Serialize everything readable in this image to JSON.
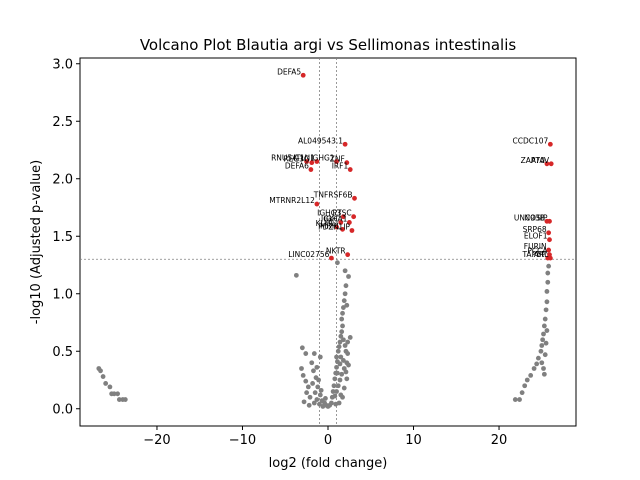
{
  "chart_data": {
    "type": "scatter",
    "title": "Volcano Plot Blautia argi vs Sellimonas intestinalis",
    "xlabel": "log2 (fold change)",
    "ylabel": "-log10 (Adjusted p-value)",
    "xlim": [
      -29,
      29
    ],
    "ylim": [
      -0.15,
      3.05
    ],
    "xticks": [
      -20,
      -10,
      0,
      10,
      20
    ],
    "yticks": [
      0.0,
      0.5,
      1.0,
      1.5,
      2.0,
      2.5,
      3.0
    ],
    "xtick_labels": [
      "−20",
      "−10",
      "0",
      "10",
      "20"
    ],
    "ytick_labels": [
      "0.0",
      "0.5",
      "1.0",
      "1.5",
      "2.0",
      "2.5",
      "3.0"
    ],
    "thresholds": {
      "log2fc": [
        -1,
        1
      ],
      "neg_log10_p": 1.3
    },
    "grid": false,
    "colors": {
      "significant": "#d62728",
      "not_significant": "#808080",
      "threshold_line": "#808080"
    },
    "significant_points": [
      {
        "label": "DEFA5",
        "x": -2.9,
        "y": 2.9
      },
      {
        "label": "AL049543.1",
        "x": 2.0,
        "y": 2.3
      },
      {
        "label": "CCDC107",
        "x": 26.0,
        "y": 2.3
      },
      {
        "label": "RNU5A-1",
        "x": -2.5,
        "y": 2.15
      },
      {
        "label": "REG3G",
        "x": -1.9,
        "y": 2.14
      },
      {
        "label": "ITLN1",
        "x": -1.3,
        "y": 2.15
      },
      {
        "label": "IGHG1",
        "x": 1.0,
        "y": 2.15
      },
      {
        "label": "ZNF",
        "x": 2.2,
        "y": 2.14
      },
      {
        "label": "DEFA6",
        "x": -2.0,
        "y": 2.08
      },
      {
        "label": "IRF1",
        "x": 2.6,
        "y": 2.08
      },
      {
        "label": "ZAP70",
        "x": 25.6,
        "y": 2.13
      },
      {
        "label": "ATAV",
        "x": 26.1,
        "y": 2.13
      },
      {
        "label": "TNFRSF6B",
        "x": 3.1,
        "y": 1.83
      },
      {
        "label": "MTRNR2L12",
        "x": -1.3,
        "y": 1.78
      },
      {
        "label": "IGHG3",
        "x": 1.8,
        "y": 1.67
      },
      {
        "label": "PTSC",
        "x": 3.0,
        "y": 1.67
      },
      {
        "label": "IGKC",
        "x": 1.5,
        "y": 1.62
      },
      {
        "label": "IGHA1",
        "x": 2.5,
        "y": 1.62
      },
      {
        "label": "UNC93B",
        "x": 25.6,
        "y": 1.63
      },
      {
        "label": "NOSIP",
        "x": 25.9,
        "y": 1.63
      },
      {
        "label": "KLHL",
        "x": 1.0,
        "y": 1.58
      },
      {
        "label": "MRPL",
        "x": 1.7,
        "y": 1.56
      },
      {
        "label": "PDZK1IP",
        "x": 2.8,
        "y": 1.55
      },
      {
        "label": "SRP68",
        "x": 25.8,
        "y": 1.53
      },
      {
        "label": "ELOF1",
        "x": 25.9,
        "y": 1.47
      },
      {
        "label": "FURIN",
        "x": 25.8,
        "y": 1.38
      },
      {
        "label": "NKTR",
        "x": 2.3,
        "y": 1.34
      },
      {
        "label": "LINC02756",
        "x": 0.4,
        "y": 1.31
      },
      {
        "label": "PCCA",
        "x": 25.9,
        "y": 1.34
      },
      {
        "label": "TAPBP",
        "x": 25.7,
        "y": 1.31
      },
      {
        "label": "ARL",
        "x": 26.0,
        "y": 1.31
      }
    ],
    "nonsignificant_points": [
      [
        -26.8,
        0.35
      ],
      [
        -26.6,
        0.33
      ],
      [
        -26.3,
        0.28
      ],
      [
        -26.0,
        0.22
      ],
      [
        -25.5,
        0.19
      ],
      [
        -25.3,
        0.13
      ],
      [
        -25.0,
        0.13
      ],
      [
        -24.6,
        0.13
      ],
      [
        -24.4,
        0.08
      ],
      [
        -24.0,
        0.08
      ],
      [
        -23.7,
        0.08
      ],
      [
        -3.7,
        1.16
      ],
      [
        -3.0,
        0.53
      ],
      [
        -2.6,
        0.48
      ],
      [
        -3.1,
        0.35
      ],
      [
        -2.9,
        0.29
      ],
      [
        -2.6,
        0.24
      ],
      [
        -2.3,
        0.19
      ],
      [
        -2.5,
        0.14
      ],
      [
        -2.1,
        0.1
      ],
      [
        -2.8,
        0.06
      ],
      [
        -1.9,
        0.4
      ],
      [
        -1.7,
        0.33
      ],
      [
        -1.4,
        0.27
      ],
      [
        -1.8,
        0.22
      ],
      [
        -1.2,
        0.19
      ],
      [
        -1.5,
        0.14
      ],
      [
        -0.9,
        0.12
      ],
      [
        -1.3,
        0.08
      ],
      [
        -0.7,
        0.07
      ],
      [
        -0.4,
        0.05
      ],
      [
        -0.2,
        0.03
      ],
      [
        0.0,
        0.02
      ],
      [
        0.2,
        0.03
      ],
      [
        -0.6,
        0.02
      ],
      [
        0.4,
        0.05
      ],
      [
        -1.0,
        0.04
      ],
      [
        -0.3,
        0.09
      ],
      [
        -1.6,
        0.05
      ],
      [
        -2.2,
        0.03
      ],
      [
        -0.8,
        0.16
      ],
      [
        -1.1,
        0.25
      ],
      [
        -1.3,
        0.36
      ],
      [
        -0.9,
        0.45
      ],
      [
        -1.6,
        0.48
      ],
      [
        0.5,
        0.1
      ],
      [
        0.6,
        0.15
      ],
      [
        0.7,
        0.2
      ],
      [
        0.8,
        0.26
      ],
      [
        0.9,
        0.31
      ],
      [
        1.0,
        0.36
      ],
      [
        1.1,
        0.41
      ],
      [
        1.0,
        0.45
      ],
      [
        1.2,
        0.5
      ],
      [
        1.3,
        0.54
      ],
      [
        1.4,
        0.58
      ],
      [
        1.5,
        0.63
      ],
      [
        1.6,
        0.67
      ],
      [
        1.7,
        0.72
      ],
      [
        1.6,
        0.78
      ],
      [
        1.7,
        0.83
      ],
      [
        1.8,
        0.88
      ],
      [
        1.9,
        0.94
      ],
      [
        2.0,
        1.0
      ],
      [
        2.1,
        1.07
      ],
      [
        2.4,
        1.15
      ],
      [
        1.1,
        1.27
      ],
      [
        2.0,
        1.2
      ],
      [
        2.2,
        0.9
      ],
      [
        1.8,
        0.6
      ],
      [
        2.0,
        0.55
      ],
      [
        2.3,
        0.48
      ],
      [
        2.2,
        0.4
      ],
      [
        1.9,
        0.35
      ],
      [
        1.6,
        0.3
      ],
      [
        1.4,
        0.25
      ],
      [
        1.2,
        0.2
      ],
      [
        1.0,
        0.15
      ],
      [
        0.8,
        0.11
      ],
      [
        1.5,
        0.12
      ],
      [
        1.9,
        0.18
      ],
      [
        2.2,
        0.26
      ],
      [
        1.3,
        0.05
      ],
      [
        0.9,
        0.04
      ],
      [
        1.7,
        0.1
      ],
      [
        2.1,
        0.32
      ],
      [
        2.4,
        0.38
      ],
      [
        2.3,
        0.58
      ],
      [
        2.1,
        0.5
      ],
      [
        1.5,
        0.45
      ],
      [
        1.8,
        0.42
      ],
      [
        2.6,
        0.62
      ],
      [
        1.4,
        0.39
      ],
      [
        1.1,
        0.31
      ],
      [
        21.9,
        0.08
      ],
      [
        22.4,
        0.08
      ],
      [
        22.7,
        0.14
      ],
      [
        23.0,
        0.2
      ],
      [
        23.3,
        0.25
      ],
      [
        23.7,
        0.29
      ],
      [
        24.1,
        0.35
      ],
      [
        24.4,
        0.39
      ],
      [
        24.6,
        0.44
      ],
      [
        24.9,
        0.5
      ],
      [
        25.0,
        0.55
      ],
      [
        25.1,
        0.6
      ],
      [
        25.2,
        0.65
      ],
      [
        25.3,
        0.72
      ],
      [
        25.4,
        0.78
      ],
      [
        25.5,
        0.86
      ],
      [
        25.6,
        0.93
      ],
      [
        25.6,
        1.02
      ],
      [
        25.7,
        1.1
      ],
      [
        25.7,
        1.18
      ],
      [
        25.8,
        1.24
      ],
      [
        25.0,
        0.4
      ],
      [
        25.2,
        0.35
      ],
      [
        25.3,
        0.3
      ],
      [
        25.4,
        0.47
      ],
      [
        25.5,
        0.57
      ],
      [
        25.6,
        0.68
      ]
    ]
  }
}
